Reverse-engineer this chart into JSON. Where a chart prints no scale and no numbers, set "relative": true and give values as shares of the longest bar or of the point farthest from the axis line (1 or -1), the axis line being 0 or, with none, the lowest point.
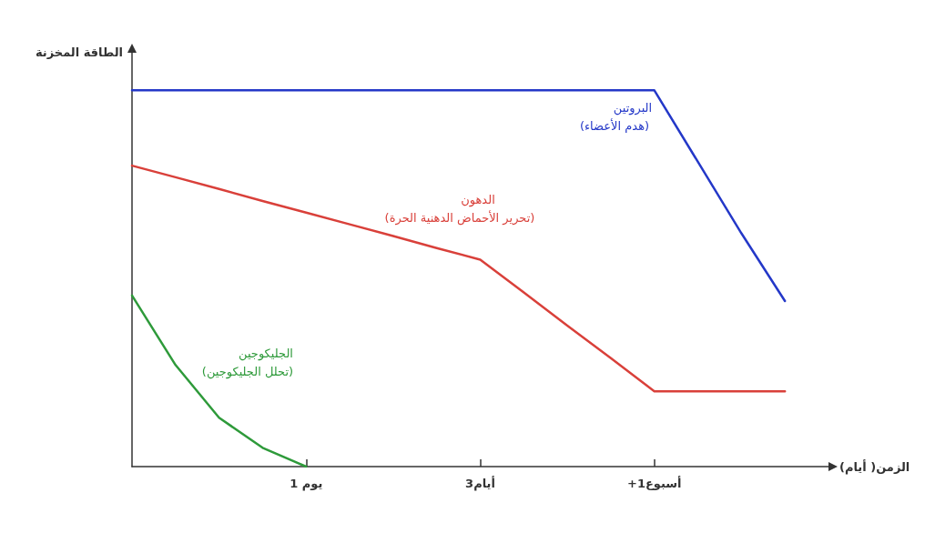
{
  "chart_data": {
    "type": "line",
    "relative": true,
    "xlabel": "الزمن( أيام)",
    "ylabel": "الطاقة المخزنة",
    "categories": [
      null,
      null,
      null,
      null,
      "1 يوم",
      null,
      null,
      null,
      "3أيام",
      null,
      null,
      null,
      "+1أسبوع",
      null,
      null,
      null,
      null
    ],
    "series": [
      {
        "name": "البروتين",
        "color": "#2438c8",
        "values": [
          1,
          1,
          1,
          1,
          1,
          1,
          1,
          1,
          1,
          1,
          1,
          1,
          1,
          0.81,
          0.62,
          0.44,
          null
        ]
      },
      {
        "name": "الدهون",
        "color": "#d9403a",
        "values": [
          0.8,
          0.769,
          0.738,
          0.706,
          0.675,
          0.644,
          0.613,
          0.581,
          0.55,
          0.463,
          0.375,
          0.288,
          0.2,
          0.2,
          0.2,
          0.2,
          null
        ]
      },
      {
        "name": "الجليكوجين",
        "color": "#2e9a3a",
        "values": [
          0.455,
          0.27,
          0.13,
          0.05,
          0,
          null,
          null,
          null,
          null,
          null,
          null,
          null,
          null,
          null,
          null,
          null,
          null
        ]
      }
    ],
    "annotations": [
      "(هدم الأعضاء)",
      "(تحرير الأحماض الدهنية الحرة)",
      "(تحلل الجليكوجين)"
    ],
    "grid": false,
    "legend": false,
    "marker": "none",
    "line_style": "solid"
  }
}
